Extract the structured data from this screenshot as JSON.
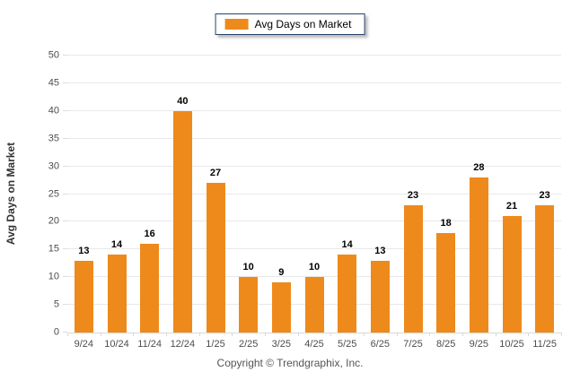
{
  "legend": {
    "label": "Avg Days on Market"
  },
  "y_axis_title": "Avg Days on Market",
  "footer_text": "Copyright © Trendgraphix, Inc.",
  "colors": {
    "bar": "#EE8A1C",
    "legend_border": "#26456e",
    "gridline": "#e8e8e8",
    "axis_line": "#d9d9d9",
    "tick_text": "#4d4d4d",
    "value_text": "#000000"
  },
  "chart_data": {
    "type": "bar",
    "title": "",
    "xlabel": "",
    "ylabel": "Avg Days on Market",
    "categories": [
      "9/24",
      "10/24",
      "11/24",
      "12/24",
      "1/25",
      "2/25",
      "3/25",
      "4/25",
      "5/25",
      "6/25",
      "7/25",
      "8/25",
      "9/25",
      "10/25",
      "11/25"
    ],
    "values": [
      13,
      14,
      16,
      40,
      27,
      10,
      9,
      10,
      14,
      13,
      23,
      18,
      28,
      21,
      23
    ],
    "ylim": [
      0,
      50
    ],
    "ytick_step": 5,
    "yticks": [
      0,
      5,
      10,
      15,
      20,
      25,
      30,
      35,
      40,
      45,
      50
    ],
    "grid": "horizontal",
    "legend_position": "top-center",
    "legend_entries": [
      "Avg Days on Market"
    ],
    "bar_color": "#EE8A1C",
    "data_labels": true
  }
}
